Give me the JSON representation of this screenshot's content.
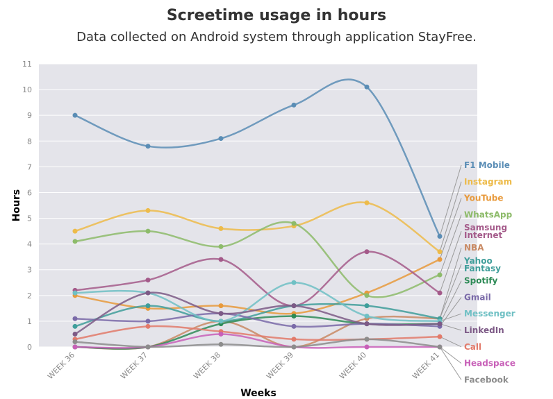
{
  "chart_data": {
    "type": "line",
    "title": "Screetime usage in hours",
    "subtitle": "Data collected on Android system through application StayFree.",
    "xlabel": "Weeks",
    "ylabel": "Hours",
    "categories": [
      "WEEK 36",
      "WEEK 37",
      "WEEK 38",
      "WEEK 39",
      "WEEK 40",
      "WEEK 41"
    ],
    "ylim": [
      0,
      11
    ],
    "yticks": [
      0,
      1,
      2,
      3,
      4,
      5,
      6,
      7,
      8,
      9,
      10,
      11
    ],
    "grid": true,
    "legend_position": "right, direct labels at line ends",
    "background": "#e4e4ea",
    "series": [
      {
        "name": "F1 Mobile",
        "color": "#5a8db5",
        "values": [
          9.0,
          7.8,
          8.1,
          9.4,
          10.1,
          4.3
        ]
      },
      {
        "name": "Instagram",
        "color": "#edbb4a",
        "values": [
          4.5,
          5.3,
          4.6,
          4.7,
          5.6,
          3.7
        ]
      },
      {
        "name": "YouTube",
        "color": "#e89a3c",
        "values": [
          2.0,
          1.5,
          1.6,
          1.3,
          2.1,
          3.4
        ]
      },
      {
        "name": "WhatsApp",
        "color": "#8dbb6a",
        "values": [
          4.1,
          4.5,
          3.9,
          4.8,
          2.0,
          2.8
        ]
      },
      {
        "name": "Samsung Internet",
        "color": "#a45a8a",
        "values": [
          2.2,
          2.6,
          3.4,
          1.6,
          3.7,
          2.1
        ]
      },
      {
        "name": "NBA",
        "color": "#c98a64",
        "values": [
          0.0,
          0.0,
          1.0,
          0.0,
          1.1,
          1.1
        ]
      },
      {
        "name": "Yahoo Fantasy",
        "color": "#3f9e9a",
        "values": [
          0.8,
          1.6,
          1.0,
          1.6,
          1.6,
          1.1
        ]
      },
      {
        "name": "Spotify",
        "color": "#2e8b57",
        "values": [
          0.0,
          0.0,
          0.9,
          1.2,
          0.9,
          0.9
        ]
      },
      {
        "name": "Gmail",
        "color": "#7a6aa8",
        "values": [
          1.1,
          1.0,
          1.3,
          0.8,
          0.9,
          0.8
        ]
      },
      {
        "name": "Messenger",
        "color": "#6fc0c4",
        "values": [
          2.1,
          2.1,
          1.0,
          2.5,
          1.2,
          1.0
        ]
      },
      {
        "name": "LinkedIn",
        "color": "#7d5a86",
        "values": [
          0.5,
          2.1,
          1.3,
          1.6,
          0.9,
          0.9
        ]
      },
      {
        "name": "Call",
        "color": "#e27a6a",
        "values": [
          0.3,
          0.8,
          0.6,
          0.3,
          0.3,
          0.4
        ]
      },
      {
        "name": "Headspace",
        "color": "#c860b8",
        "values": [
          0.0,
          0.0,
          0.5,
          0.0,
          0.0,
          0.0
        ]
      },
      {
        "name": "Facebook",
        "color": "#8c8c8c",
        "values": [
          0.2,
          0.0,
          0.1,
          0.0,
          0.3,
          0.0
        ]
      }
    ]
  }
}
